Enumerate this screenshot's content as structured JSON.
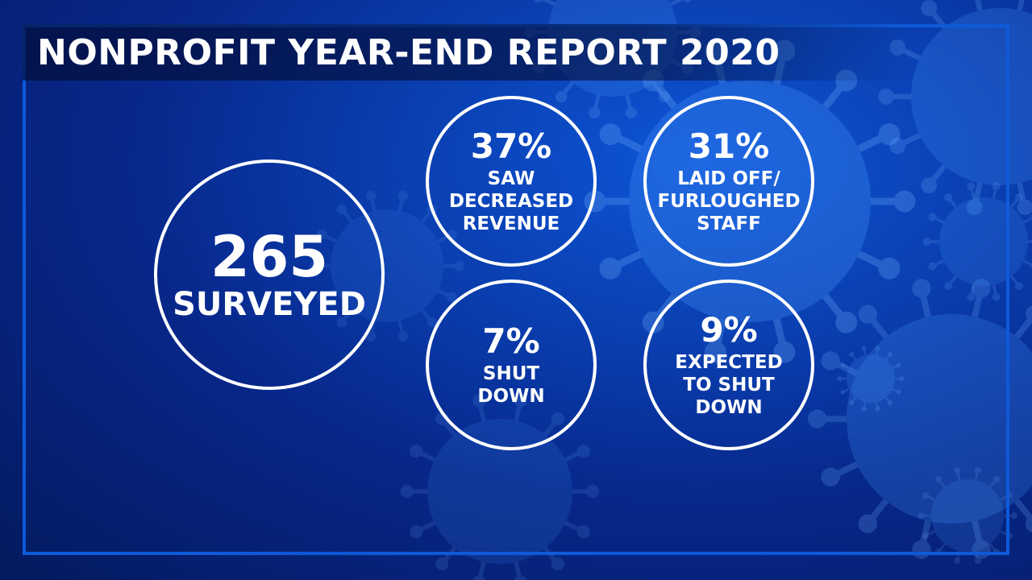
{
  "title": "NONPROFIT YEAR-END REPORT 2020",
  "colors": {
    "frame": "#0e5ad9",
    "text": "#ffffff",
    "background": "#0a3fb0"
  },
  "decoration": "virus-particles-background",
  "surveyed": {
    "number": "265",
    "label": "SURVEYED"
  },
  "stats": [
    {
      "value": "37%",
      "label_lines": [
        "SAW",
        "DECREASED",
        "REVENUE"
      ]
    },
    {
      "value": "31%",
      "label_lines": [
        "LAID OFF/",
        "FURLOUGHED",
        "STAFF"
      ]
    },
    {
      "value": "7%",
      "label_lines": [
        "SHUT",
        "DOWN"
      ]
    },
    {
      "value": "9%",
      "label_lines": [
        "EXPECTED",
        "TO SHUT",
        "DOWN"
      ]
    }
  ]
}
